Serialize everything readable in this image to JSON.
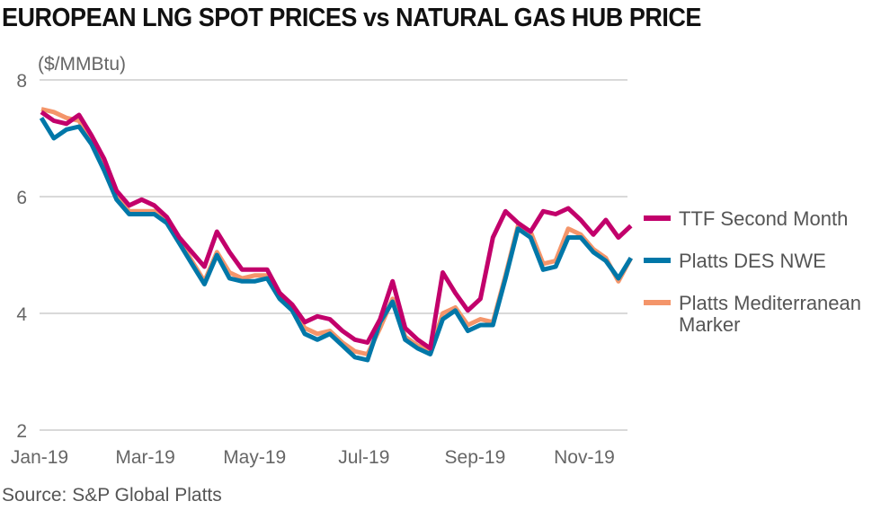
{
  "chart_data": {
    "type": "line",
    "title": "EUROPEAN LNG SPOT PRICES vs NATURAL GAS HUB PRICE",
    "ylabel": "($/MMBtu)",
    "source": "Source: S&P Global Platts",
    "ylim": [
      2,
      8
    ],
    "yticks": [
      2,
      4,
      6,
      8
    ],
    "xticks": [
      {
        "label": "Jan-19",
        "date": "2019-01-01"
      },
      {
        "label": "Mar-19",
        "date": "2019-03-01"
      },
      {
        "label": "May-19",
        "date": "2019-05-01"
      },
      {
        "label": "Jul-19",
        "date": "2019-07-01"
      },
      {
        "label": "Sep-19",
        "date": "2019-09-01"
      },
      {
        "label": "Nov-19",
        "date": "2019-11-01"
      }
    ],
    "grid": true,
    "legend_placement": "right",
    "x": [
      "2019-01-02",
      "2019-01-09",
      "2019-01-16",
      "2019-01-23",
      "2019-01-30",
      "2019-02-06",
      "2019-02-13",
      "2019-02-20",
      "2019-02-27",
      "2019-03-06",
      "2019-03-13",
      "2019-03-20",
      "2019-03-27",
      "2019-04-03",
      "2019-04-10",
      "2019-04-17",
      "2019-04-24",
      "2019-05-01",
      "2019-05-08",
      "2019-05-15",
      "2019-05-22",
      "2019-05-29",
      "2019-06-05",
      "2019-06-12",
      "2019-06-19",
      "2019-06-26",
      "2019-07-03",
      "2019-07-10",
      "2019-07-17",
      "2019-07-24",
      "2019-07-31",
      "2019-08-07",
      "2019-08-14",
      "2019-08-21",
      "2019-08-28",
      "2019-09-04",
      "2019-09-11",
      "2019-09-18",
      "2019-09-25",
      "2019-10-02",
      "2019-10-09",
      "2019-10-16",
      "2019-10-23",
      "2019-10-30",
      "2019-11-06",
      "2019-11-13",
      "2019-11-20",
      "2019-11-27"
    ],
    "series": [
      {
        "name": "Platts Mediterranean Marker",
        "color": "#f4956a",
        "values": [
          7.5,
          7.45,
          7.35,
          7.3,
          6.95,
          6.55,
          6.0,
          5.75,
          5.75,
          5.75,
          5.6,
          5.25,
          4.9,
          4.55,
          5.05,
          4.7,
          4.6,
          4.65,
          4.65,
          4.3,
          4.1,
          3.75,
          3.65,
          3.7,
          3.5,
          3.35,
          3.3,
          3.75,
          4.25,
          3.6,
          3.45,
          3.35,
          4.0,
          4.1,
          3.8,
          3.9,
          3.85,
          4.65,
          5.5,
          5.4,
          4.85,
          4.9,
          5.45,
          5.35,
          5.1,
          4.95,
          4.55,
          4.95
        ]
      },
      {
        "name": "Platts DES NWE",
        "color": "#0077a8",
        "values": [
          7.35,
          7.0,
          7.15,
          7.2,
          6.9,
          6.45,
          5.95,
          5.7,
          5.7,
          5.7,
          5.55,
          5.2,
          4.85,
          4.5,
          5.0,
          4.6,
          4.55,
          4.55,
          4.6,
          4.25,
          4.05,
          3.65,
          3.55,
          3.65,
          3.45,
          3.25,
          3.2,
          3.85,
          4.2,
          3.55,
          3.4,
          3.3,
          3.9,
          4.05,
          3.7,
          3.8,
          3.8,
          4.6,
          5.45,
          5.3,
          4.75,
          4.8,
          5.3,
          5.3,
          5.05,
          4.9,
          4.6,
          4.95
        ]
      },
      {
        "name": "TTF Second Month",
        "color": "#c2006b",
        "values": [
          7.45,
          7.3,
          7.25,
          7.4,
          7.05,
          6.65,
          6.1,
          5.85,
          5.95,
          5.85,
          5.65,
          5.3,
          5.05,
          4.8,
          5.4,
          5.05,
          4.75,
          4.75,
          4.75,
          4.35,
          4.15,
          3.85,
          3.95,
          3.9,
          3.7,
          3.55,
          3.5,
          3.9,
          4.55,
          3.75,
          3.55,
          3.4,
          4.7,
          4.35,
          4.05,
          4.25,
          5.3,
          5.75,
          5.55,
          5.4,
          5.75,
          5.7,
          5.8,
          5.6,
          5.35,
          5.6,
          5.3,
          5.5
        ]
      }
    ],
    "legend": [
      {
        "label": "TTF Second Month",
        "color": "#c2006b"
      },
      {
        "label": "Platts DES NWE",
        "color": "#0077a8"
      },
      {
        "label": "Platts Mediterranean",
        "label2": "Marker",
        "color": "#f4956a"
      }
    ]
  }
}
